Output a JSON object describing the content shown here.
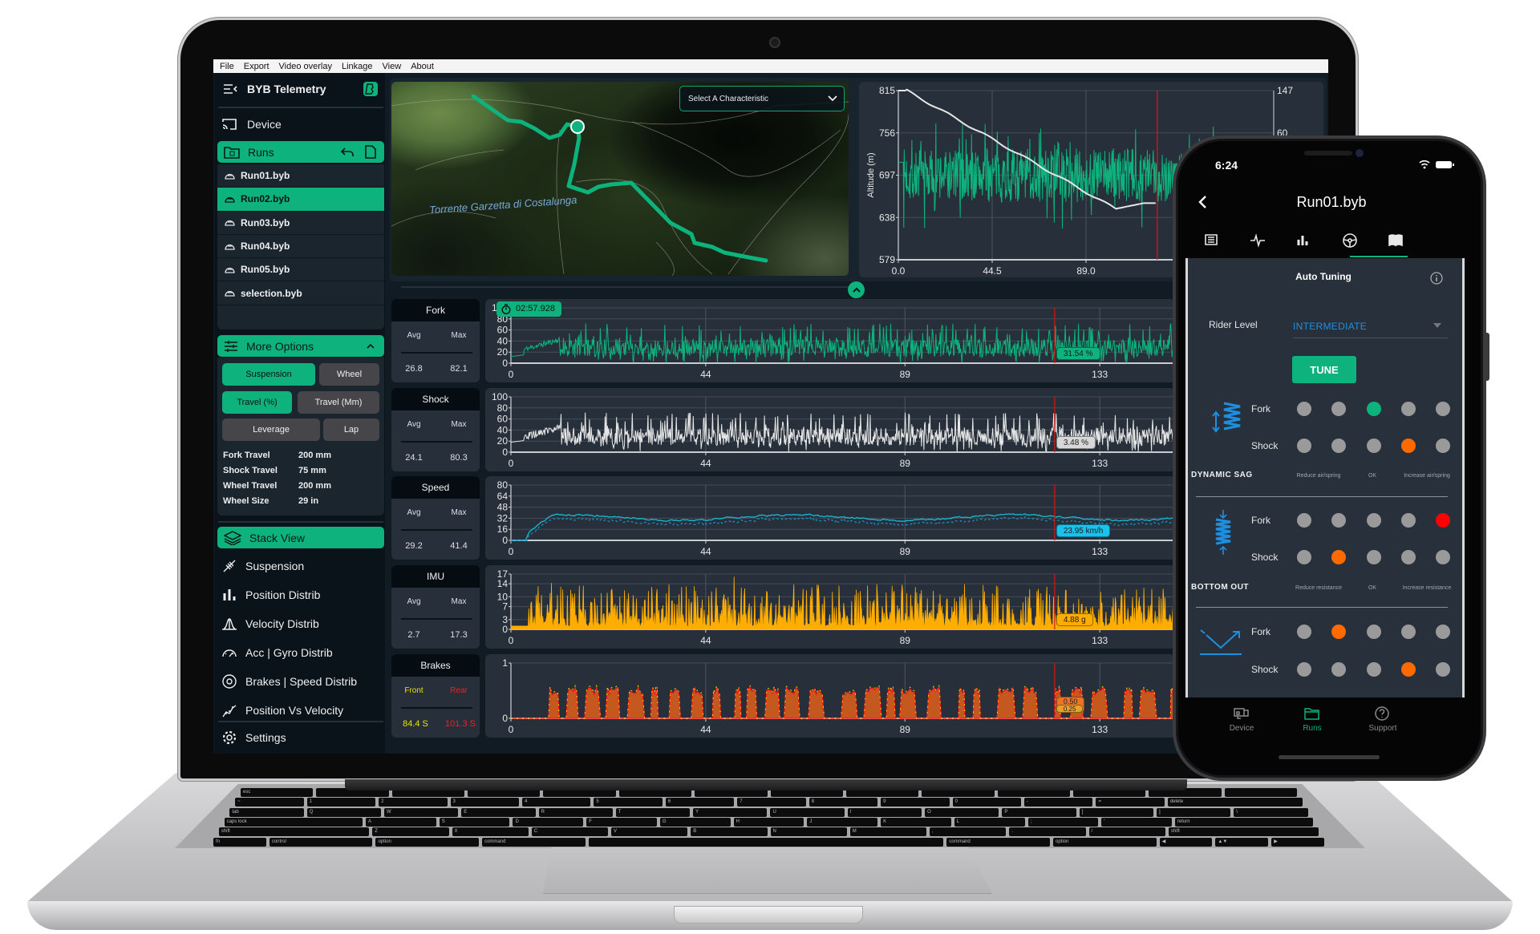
{
  "colors": {
    "accent": "#0db27c",
    "fork": "#0db27c",
    "shock": "#e6e6e6",
    "speed": "#19b9d6",
    "imu": "#ffad00",
    "brake_front": "#e8e000",
    "brake_rear": "#ff1a1a",
    "cursor": "#d01818"
  },
  "menu": [
    "File",
    "Export",
    "Video overlay",
    "Linkage",
    "View",
    "About"
  ],
  "sidebar": {
    "title": "BYB Telemetry",
    "device": "Device",
    "runs": "Runs",
    "run_files": [
      "Run01.byb",
      "Run02.byb",
      "Run03.byb",
      "Run04.byb",
      "Run05.byb",
      "selection.byb"
    ],
    "selected_run": "Run02.byb",
    "more_options": "More Options",
    "option_buttons": [
      {
        "label": "Suspension",
        "active": true
      },
      {
        "label": "Wheel",
        "active": false
      },
      {
        "label": "Travel (%)",
        "active": true
      },
      {
        "label": "Travel (Mm)",
        "active": false
      },
      {
        "label": "Leverage",
        "active": false
      },
      {
        "label": "Lap",
        "active": false
      }
    ],
    "specs": [
      {
        "label": "Fork Travel",
        "value": "200 mm"
      },
      {
        "label": "Shock Travel",
        "value": "75 mm"
      },
      {
        "label": "Wheel Travel",
        "value": "200 mm"
      },
      {
        "label": "Wheel Size",
        "value": "29 in"
      }
    ],
    "stack_view": "Stack View",
    "views": [
      "Suspension",
      "Position Distrib",
      "Velocity Distrib",
      "Acc | Gyro Distrib",
      "Brakes | Speed Distrib",
      "Position Vs Velocity"
    ],
    "settings": "Settings"
  },
  "map": {
    "dropdown": "Select A Characteristic",
    "place_label": "Torrente Garzetta di Costalunga"
  },
  "stats": [
    {
      "title": "Fork",
      "labels": [
        "Avg",
        "Max"
      ],
      "values": [
        "26.8",
        "82.1"
      ]
    },
    {
      "title": "Shock",
      "labels": [
        "Avg",
        "Max"
      ],
      "values": [
        "24.1",
        "80.3"
      ]
    },
    {
      "title": "Speed",
      "labels": [
        "Avg",
        "Max"
      ],
      "values": [
        "29.2",
        "41.4"
      ]
    },
    {
      "title": "IMU",
      "labels": [
        "Avg",
        "Max"
      ],
      "values": [
        "2.7",
        "17.3"
      ]
    },
    {
      "title": "Brakes",
      "labels": [
        "Front",
        "Rear"
      ],
      "values": [
        "84.4 S",
        "101.3 S"
      ]
    }
  ],
  "timer": "02:57.928",
  "chart_data": [
    {
      "id": "altitude",
      "type": "line",
      "ylabel": "Altitude (m)",
      "yticks": [
        "815",
        "756",
        "697",
        "638",
        "579"
      ],
      "ylim": [
        579,
        815
      ],
      "xticks": [
        "0.0",
        "44.5",
        "89.0"
      ],
      "xlim": [
        0,
        178
      ],
      "right_yticks": [
        "147",
        "60"
      ],
      "grid": true,
      "cursor_x": 122.8
    },
    {
      "id": "fork",
      "type": "line",
      "yticks": [
        "100",
        "80",
        "60",
        "40",
        "20",
        "0"
      ],
      "ylim": [
        0,
        100
      ],
      "xticks": [
        "0",
        "44",
        "89",
        "133"
      ],
      "xlim": [
        0,
        150
      ],
      "grid": true,
      "cursor_x": 122.8,
      "cursor_label": "31.54 %"
    },
    {
      "id": "shock",
      "type": "line",
      "yticks": [
        "100",
        "80",
        "60",
        "40",
        "20",
        "0"
      ],
      "ylim": [
        0,
        100
      ],
      "xticks": [
        "0",
        "44",
        "89",
        "133"
      ],
      "xlim": [
        0,
        150
      ],
      "grid": true,
      "cursor_x": 122.8,
      "cursor_label": "3.48 %"
    },
    {
      "id": "speed",
      "type": "line",
      "yticks": [
        "80",
        "64",
        "48",
        "32",
        "16",
        "0"
      ],
      "ylim": [
        0,
        80
      ],
      "xticks": [
        "0",
        "44",
        "89",
        "133"
      ],
      "xlim": [
        0,
        150
      ],
      "grid": true,
      "cursor_x": 122.8,
      "cursor_label": "23.95 km/h"
    },
    {
      "id": "imu",
      "type": "area",
      "yticks": [
        "17",
        "14",
        "10",
        "7",
        "3",
        "0"
      ],
      "ylim": [
        0,
        17
      ],
      "xticks": [
        "0",
        "44",
        "89",
        "133"
      ],
      "xlim": [
        0,
        150
      ],
      "grid": true,
      "cursor_x": 122.8,
      "cursor_label": "4.88 g"
    },
    {
      "id": "brakes",
      "type": "area",
      "yticks": [
        "1",
        "0"
      ],
      "ylim": [
        0,
        1
      ],
      "xticks": [
        "0",
        "44",
        "89",
        "133"
      ],
      "xlim": [
        0,
        150
      ],
      "grid": true,
      "cursor_x": 122.8,
      "cursor_label": "0.50",
      "cursor_label_2": "0.25"
    }
  ],
  "phone": {
    "time": "6:24",
    "title": "Run01.byb",
    "active_tab": 3,
    "tabs": [
      "list-icon",
      "pulse-icon",
      "bar-chart-icon",
      "steering-wheel-icon",
      "book-icon"
    ],
    "heading": "Auto Tuning",
    "rider_level_label": "Rider Level",
    "rider_level": "INTERMEDIATE",
    "tune": "TUNE",
    "sections": [
      {
        "name": "DYNAMIC SAG",
        "hints": [
          "Reduce air/spring",
          "OK",
          "Increase air/spring"
        ],
        "rows": [
          {
            "label": "Fork",
            "active": 2,
            "color": "#0db27c"
          },
          {
            "label": "Shock",
            "active": 3,
            "color": "#ff6a00"
          }
        ]
      },
      {
        "name": "BOTTOM OUT",
        "hints": [
          "Reduce resistance",
          "OK",
          "Increase resistance"
        ],
        "rows": [
          {
            "label": "Fork",
            "active": 4,
            "color": "#ff0000"
          },
          {
            "label": "Shock",
            "active": 1,
            "color": "#ff6a00"
          }
        ]
      },
      {
        "name": "",
        "hints": [],
        "rows": [
          {
            "label": "Fork",
            "active": 1,
            "color": "#ff6a00"
          },
          {
            "label": "Shock",
            "active": 3,
            "color": "#ff6a00"
          }
        ]
      }
    ],
    "nav": [
      {
        "label": "Device",
        "active": false
      },
      {
        "label": "Runs",
        "active": true
      },
      {
        "label": "Support",
        "active": false
      }
    ]
  },
  "keyboard": {
    "rows": [
      [
        "esc",
        "",
        "",
        "",
        "",
        "",
        "",
        "",
        "",
        "",
        "",
        "",
        "",
        ""
      ],
      [
        "~",
        "1",
        "2",
        "3",
        "4",
        "5",
        "6",
        "7",
        "8",
        "9",
        "0",
        "-",
        "=",
        "delete"
      ],
      [
        "tab",
        "Q",
        "W",
        "E",
        "R",
        "T",
        "Y",
        "U",
        "I",
        "O",
        "P",
        "[",
        "]",
        "\\"
      ],
      [
        "caps lock",
        "A",
        "S",
        "D",
        "F",
        "G",
        "H",
        "J",
        "K",
        "L",
        ";",
        "'",
        "return"
      ],
      [
        "shift",
        "Z",
        "X",
        "C",
        "V",
        "B",
        "N",
        "M",
        ",",
        ".",
        "/",
        "shift"
      ],
      [
        "fn",
        "control",
        "option",
        "command",
        "",
        "command",
        "option",
        "◀",
        "▲▼",
        "▶"
      ]
    ]
  }
}
